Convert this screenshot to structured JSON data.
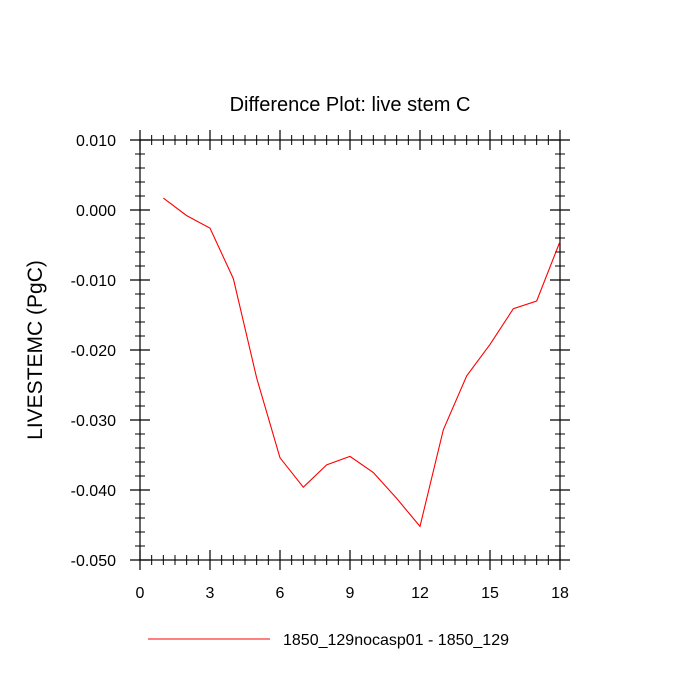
{
  "chart_data": {
    "type": "line",
    "title": "Difference Plot: live stem C",
    "xlabel": "",
    "ylabel": "LIVESTEMC  (PgC)",
    "xlim": [
      0,
      18
    ],
    "ylim": [
      -0.05,
      0.01
    ],
    "x_ticks": [
      0,
      3,
      6,
      9,
      12,
      15,
      18
    ],
    "x_tick_labels": [
      "0",
      "3",
      "6",
      "9",
      "12",
      "15",
      "18"
    ],
    "y_ticks": [
      0.01,
      0.0,
      -0.01,
      -0.02,
      -0.03,
      -0.04,
      -0.05
    ],
    "y_tick_labels": [
      "0.010",
      "0.000",
      "-0.010",
      "-0.020",
      "-0.030",
      "-0.040",
      "-0.050"
    ],
    "grid": false,
    "legend_position": "bottom",
    "series": [
      {
        "name": "1850_129nocasp01 - 1850_129",
        "color": "#ff0000",
        "x": [
          1,
          2,
          3,
          4,
          5,
          6,
          7,
          8,
          9,
          10,
          11,
          12,
          13,
          14,
          15,
          16,
          17,
          18
        ],
        "y": [
          0.0017,
          -0.0008,
          -0.0026,
          -0.0098,
          -0.024,
          -0.0354,
          -0.0396,
          -0.0364,
          -0.0352,
          -0.0375,
          -0.0412,
          -0.0452,
          -0.0314,
          -0.0237,
          -0.0192,
          -0.0141,
          -0.013,
          -0.0045
        ]
      }
    ]
  }
}
